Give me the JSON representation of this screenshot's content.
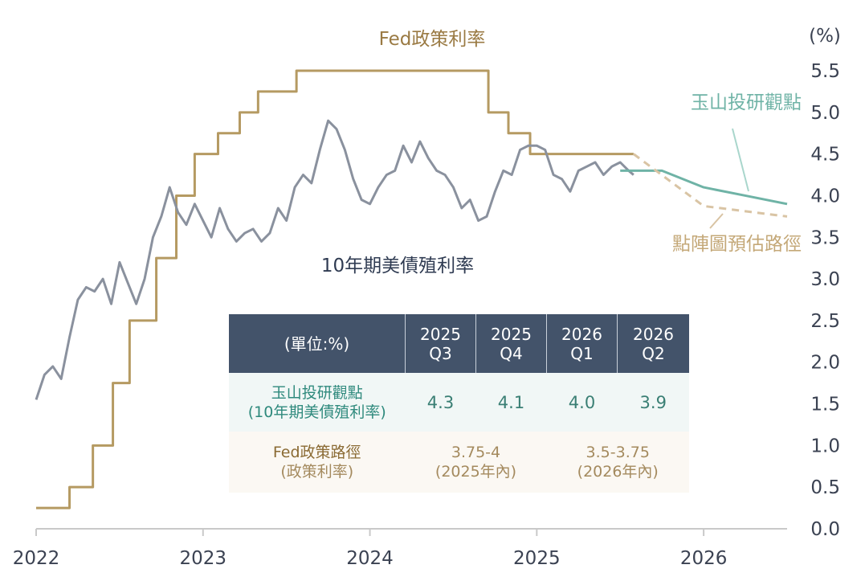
{
  "chart_data": {
    "type": "line",
    "y_unit": "(%)",
    "ylim": [
      0.0,
      5.5
    ],
    "yticks": [
      "0.0",
      "0.5",
      "1.0",
      "1.5",
      "2.0",
      "2.5",
      "3.0",
      "3.5",
      "4.0",
      "4.5",
      "5.0",
      "5.5"
    ],
    "xlim": [
      2022.0,
      2026.5
    ],
    "xticks": [
      "2022",
      "2023",
      "2024",
      "2025",
      "2026"
    ],
    "labels": {
      "fed": "Fed政策利率",
      "treasury": "10年期美債殖利率",
      "esun": "玉山投研觀點",
      "dotplot": "點陣圖預估路徑"
    },
    "colors": {
      "fed": "#b59a62",
      "treasury": "#8a919e",
      "esun": "#6fb3a6",
      "dotplot": "#d9c4a4",
      "axis": "#c9c9c9",
      "header": "#43536a"
    },
    "series": [
      {
        "name": "Fed政策利率",
        "style": "step",
        "x": [
          2022.0,
          2022.2,
          2022.34,
          2022.46,
          2022.56,
          2022.72,
          2022.84,
          2022.95,
          2023.09,
          2023.22,
          2023.33,
          2023.56,
          2024.71,
          2024.83,
          2024.96,
          2025.58
        ],
        "values": [
          0.25,
          0.5,
          1.0,
          1.75,
          2.5,
          3.25,
          4.0,
          4.5,
          4.75,
          5.0,
          5.25,
          5.5,
          5.0,
          4.75,
          4.5,
          4.5
        ]
      },
      {
        "name": "10年期美債殖利率",
        "style": "line",
        "x": [
          2022.0,
          2022.05,
          2022.1,
          2022.15,
          2022.2,
          2022.25,
          2022.3,
          2022.35,
          2022.4,
          2022.45,
          2022.5,
          2022.55,
          2022.6,
          2022.65,
          2022.7,
          2022.75,
          2022.8,
          2022.85,
          2022.9,
          2022.95,
          2023.0,
          2023.05,
          2023.1,
          2023.15,
          2023.2,
          2023.25,
          2023.3,
          2023.35,
          2023.4,
          2023.45,
          2023.5,
          2023.55,
          2023.6,
          2023.65,
          2023.7,
          2023.75,
          2023.8,
          2023.85,
          2023.9,
          2023.95,
          2024.0,
          2024.05,
          2024.1,
          2024.15,
          2024.2,
          2024.25,
          2024.3,
          2024.35,
          2024.4,
          2024.45,
          2024.5,
          2024.55,
          2024.6,
          2024.65,
          2024.7,
          2024.75,
          2024.8,
          2024.85,
          2024.9,
          2024.95,
          2025.0,
          2025.05,
          2025.1,
          2025.15,
          2025.2,
          2025.25,
          2025.3,
          2025.35,
          2025.4,
          2025.45,
          2025.5,
          2025.55,
          2025.58
        ],
        "values": [
          1.55,
          1.85,
          1.95,
          1.8,
          2.3,
          2.75,
          2.9,
          2.85,
          3.0,
          2.7,
          3.2,
          2.95,
          2.7,
          3.0,
          3.5,
          3.75,
          4.1,
          3.8,
          3.65,
          3.9,
          3.7,
          3.5,
          3.85,
          3.6,
          3.45,
          3.55,
          3.6,
          3.45,
          3.55,
          3.85,
          3.7,
          4.1,
          4.25,
          4.15,
          4.55,
          4.9,
          4.8,
          4.55,
          4.2,
          3.95,
          3.9,
          4.1,
          4.25,
          4.3,
          4.6,
          4.4,
          4.65,
          4.45,
          4.3,
          4.25,
          4.1,
          3.85,
          3.95,
          3.7,
          3.75,
          4.05,
          4.3,
          4.25,
          4.55,
          4.6,
          4.6,
          4.55,
          4.25,
          4.2,
          4.05,
          4.3,
          4.35,
          4.4,
          4.25,
          4.35,
          4.4,
          4.3,
          4.25
        ]
      },
      {
        "name": "玉山投研觀點",
        "style": "line",
        "x": [
          2025.5,
          2025.75,
          2026.0,
          2026.25,
          2026.5
        ],
        "values": [
          4.3,
          4.3,
          4.1,
          4.0,
          3.9
        ]
      },
      {
        "name": "點陣圖預估路徑",
        "style": "dashed",
        "x": [
          2025.58,
          2026.0,
          2026.5
        ],
        "values": [
          4.5,
          3.875,
          3.75
        ]
      }
    ]
  },
  "table": {
    "header": [
      "(單位:%)",
      "2025 Q3",
      "2025 Q4",
      "2026 Q1",
      "2026 Q2"
    ],
    "row1": {
      "label": "玉山投研觀點",
      "sublabel": "(10年期美債殖利率)",
      "values": [
        "4.3",
        "4.1",
        "4.0",
        "3.9"
      ]
    },
    "row2": {
      "label": "Fed政策路徑",
      "sublabel": "(政策利率)",
      "values": [
        {
          "value": "3.75-4",
          "note": "(2025年內)"
        },
        {
          "value": "3.5-3.75",
          "note": "(2026年內)"
        }
      ]
    }
  }
}
